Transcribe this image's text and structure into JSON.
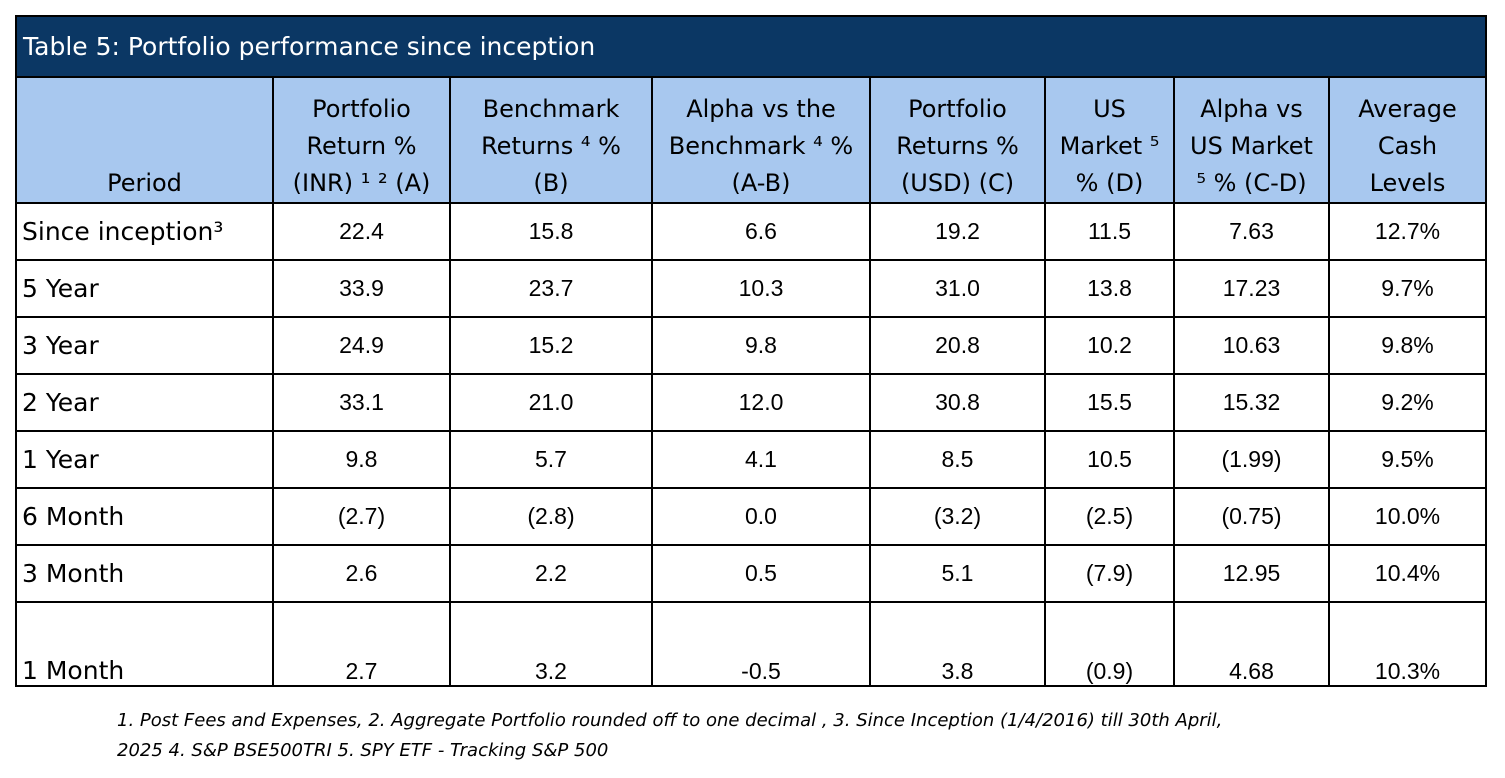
{
  "title": "Table 5: Portfolio performance since inception",
  "headers": [
    [
      "Period"
    ],
    [
      "Portfolio",
      "Return %",
      "(INR) ¹ ² (A)"
    ],
    [
      "Benchmark",
      "Returns ⁴ %",
      "(B)"
    ],
    [
      "Alpha vs the",
      "Benchmark ⁴ %",
      "(A-B)"
    ],
    [
      "Portfolio",
      "Returns %",
      "(USD) (C)"
    ],
    [
      "US",
      "Market ⁵",
      "% (D)"
    ],
    [
      "Alpha vs",
      "US Market",
      "⁵ % (C-D)"
    ],
    [
      "Average",
      "Cash",
      "Levels"
    ]
  ],
  "rows": [
    [
      "Since inception³",
      "22.4",
      "15.8",
      "6.6",
      "19.2",
      "11.5",
      "7.63",
      "12.7%"
    ],
    [
      "5 Year",
      "33.9",
      "23.7",
      "10.3",
      "31.0",
      "13.8",
      "17.23",
      "9.7%"
    ],
    [
      "3 Year",
      "24.9",
      "15.2",
      "9.8",
      "20.8",
      "10.2",
      "10.63",
      "9.8%"
    ],
    [
      "2 Year",
      "33.1",
      "21.0",
      "12.0",
      "30.8",
      "15.5",
      "15.32",
      "9.2%"
    ],
    [
      "1 Year",
      "9.8",
      "5.7",
      "4.1",
      "8.5",
      "10.5",
      "(1.99)",
      "9.5%"
    ],
    [
      "6 Month",
      "(2.7)",
      "(2.8)",
      "0.0",
      "(3.2)",
      "(2.5)",
      "(0.75)",
      "10.0%"
    ],
    [
      "3 Month",
      "2.6",
      "2.2",
      "0.5",
      "5.1",
      "(7.9)",
      "12.95",
      "10.4%"
    ],
    [
      "1 Month",
      "2.7",
      "3.2",
      "-0.5",
      "3.8",
      "(0.9)",
      "4.68",
      "10.3%"
    ]
  ],
  "footnote": {
    "line1": "1. Post Fees and Expenses, 2. Aggregate Portfolio rounded off to one decimal , 3. Since Inception (1/4/2016) till 30th April,",
    "line2": "2025  4. S&P BSE500TRI 5. SPY ETF - Tracking S&P 500"
  },
  "colors": {
    "title_bg": "#0b3764",
    "header_bg": "#a8c8ef",
    "border": "#000000"
  }
}
